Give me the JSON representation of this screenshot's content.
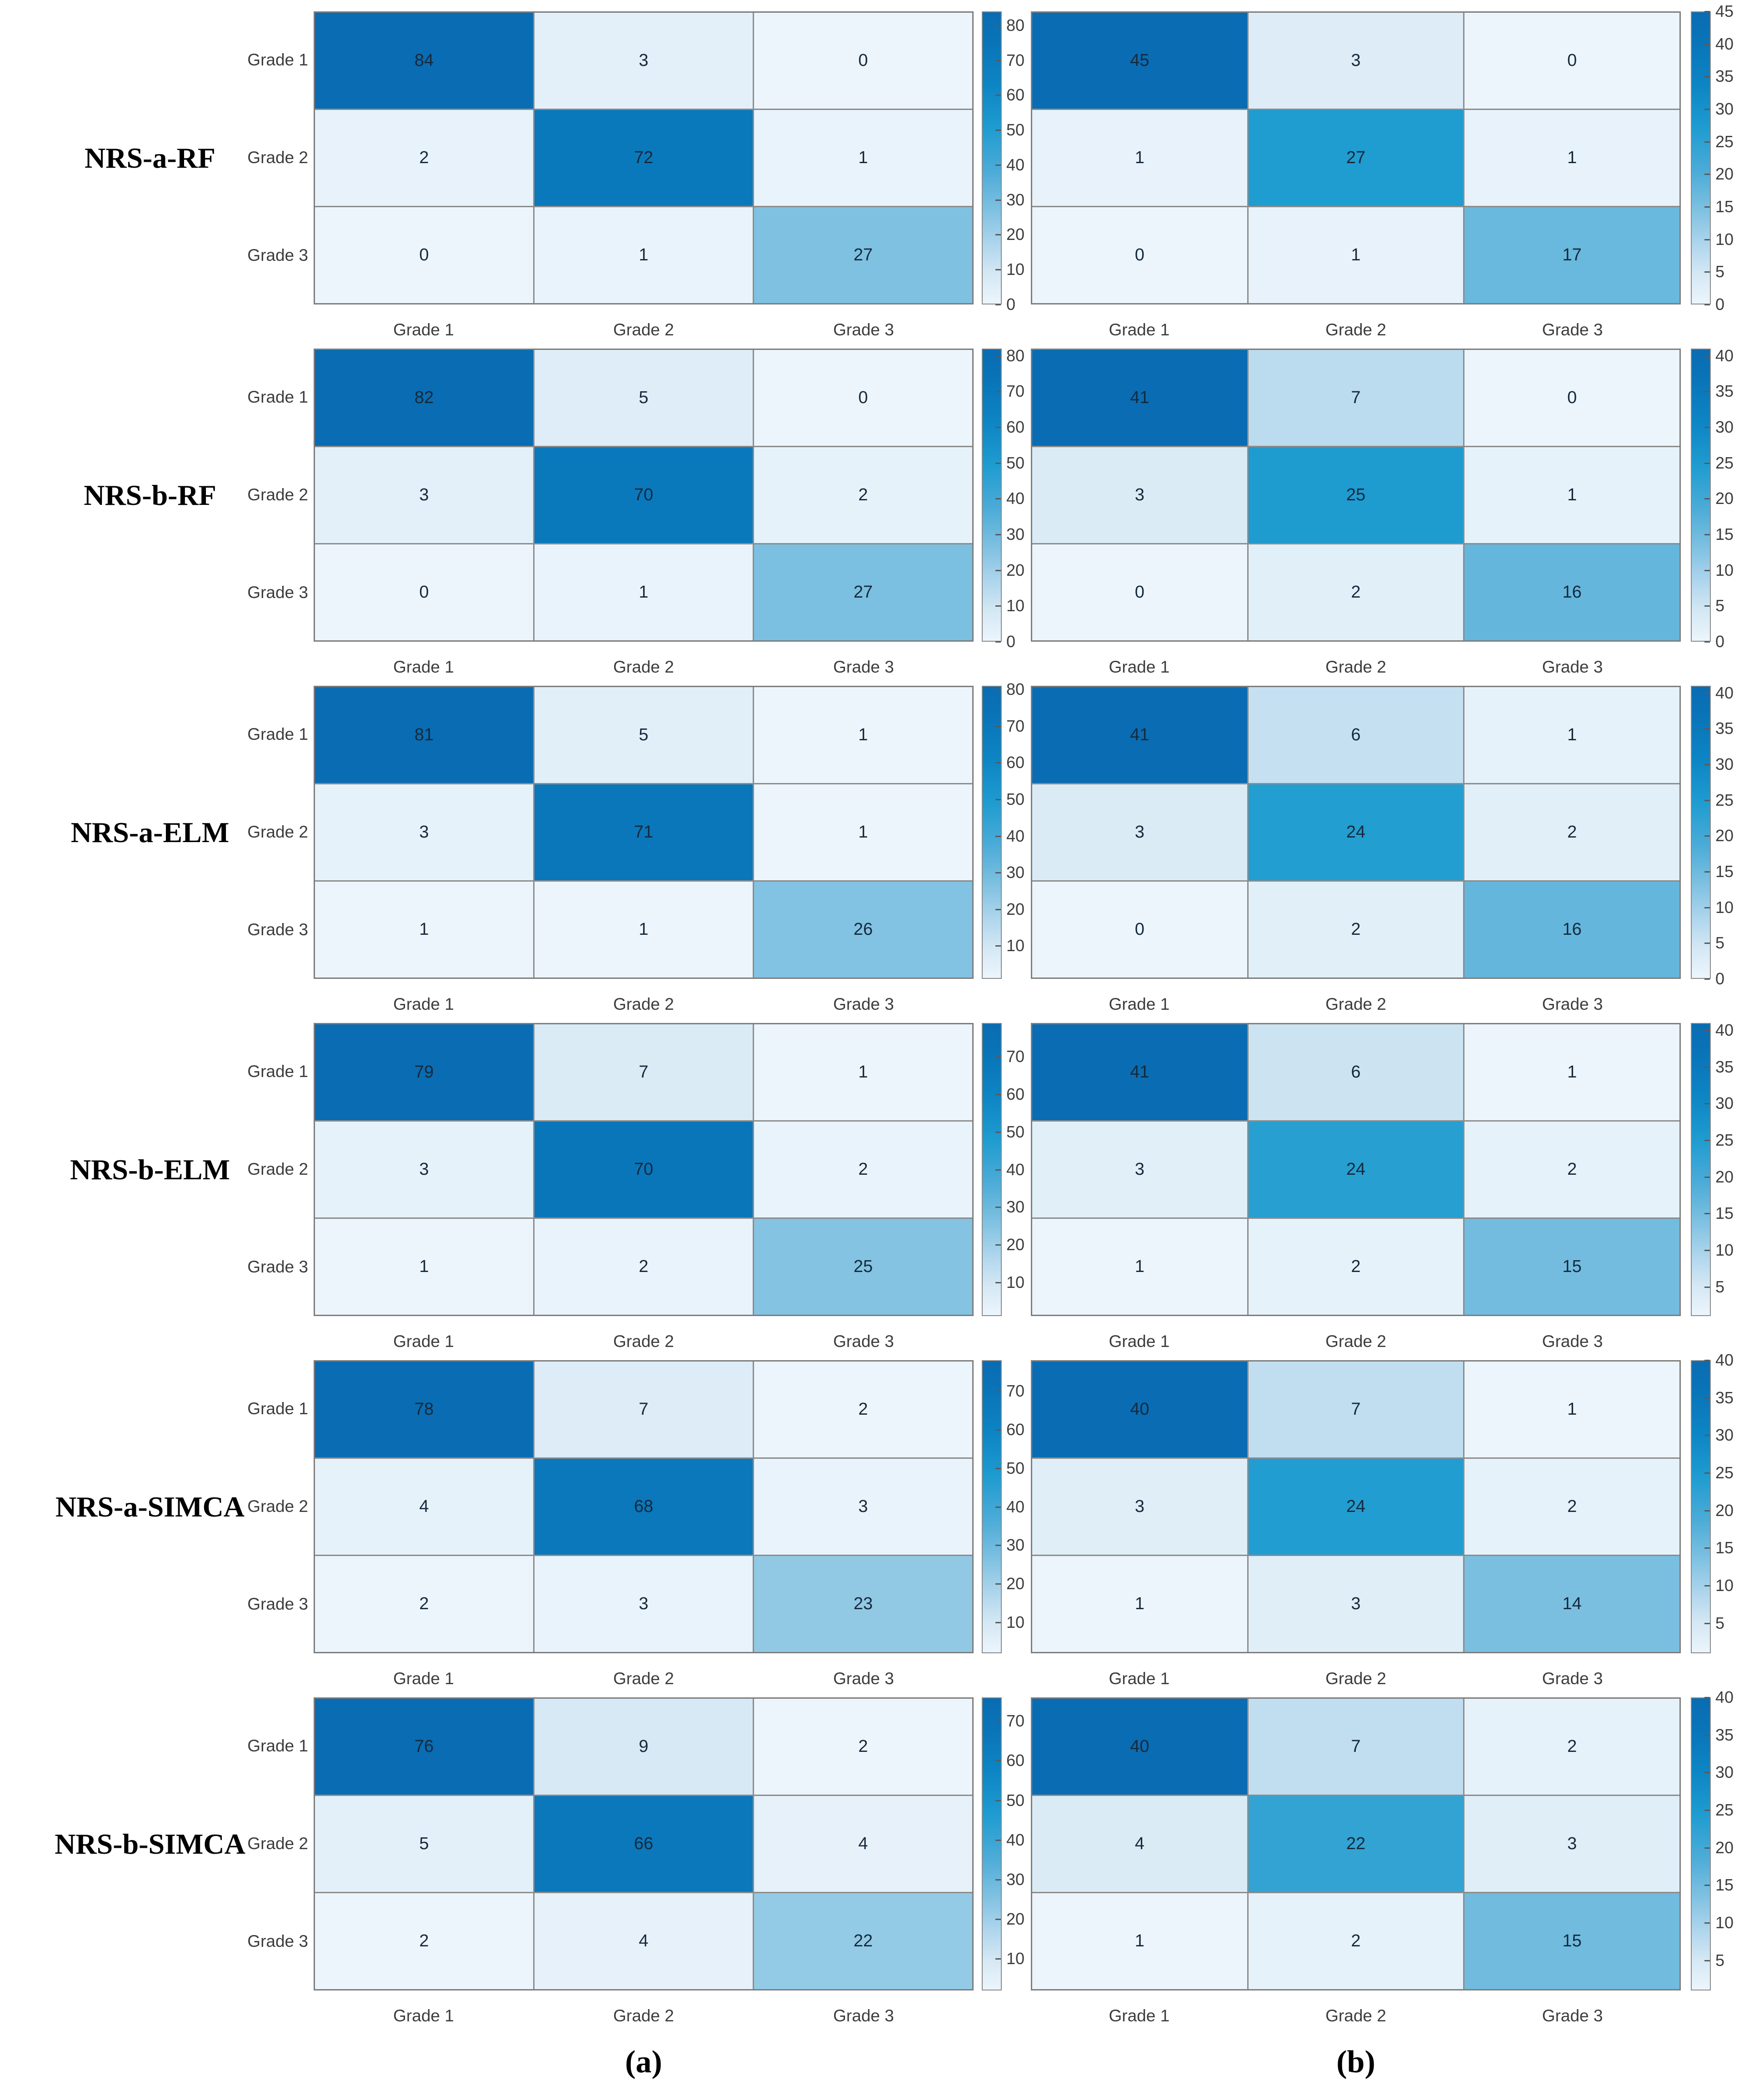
{
  "captions": {
    "a": "(a)",
    "b": "(b)"
  },
  "models": [
    "NRS-a-RF",
    "NRS-b-RF",
    "NRS-a-ELM",
    "NRS-b-ELM",
    "NRS-a-SIMCA",
    "NRS-b-SIMCA"
  ],
  "grades": [
    "Grade 1",
    "Grade 2",
    "Grade 3"
  ],
  "colors": {
    "grid_line": "#8c8c8c",
    "panel_border": "#7d7d7d",
    "tick_text": "#3d3d3d",
    "value_text": "#16293c",
    "colormap": [
      {
        "t": 0.0,
        "hex": "#ECF5FC"
      },
      {
        "t": 0.1,
        "hex": "#D5E8F4"
      },
      {
        "t": 0.2,
        "hex": "#B0D6ED"
      },
      {
        "t": 0.32,
        "hex": "#7FC1E1"
      },
      {
        "t": 0.45,
        "hex": "#4DACD8"
      },
      {
        "t": 0.6,
        "hex": "#1F9CD0"
      },
      {
        "t": 0.75,
        "hex": "#0D85C4"
      },
      {
        "t": 0.9,
        "hex": "#0974B8"
      },
      {
        "t": 1.0,
        "hex": "#0A6CB2"
      }
    ]
  },
  "chart_data": [
    {
      "type": "heatmap",
      "model": "NRS-a-RF",
      "panel": "a",
      "x_labels": [
        "Grade 1",
        "Grade 2",
        "Grade 3"
      ],
      "y_labels": [
        "Grade 1",
        "Grade 2",
        "Grade 3"
      ],
      "values": [
        [
          84,
          3,
          0
        ],
        [
          2,
          72,
          1
        ],
        [
          0,
          1,
          27
        ]
      ],
      "clim": [
        0,
        84
      ],
      "colorbar_ticks": [
        0,
        10,
        20,
        30,
        40,
        50,
        60,
        70,
        80
      ]
    },
    {
      "type": "heatmap",
      "model": "NRS-a-RF",
      "panel": "b",
      "x_labels": [
        "Grade 1",
        "Grade 2",
        "Grade 3"
      ],
      "y_labels": [
        "Grade 1",
        "Grade 2",
        "Grade 3"
      ],
      "values": [
        [
          45,
          3,
          0
        ],
        [
          1,
          27,
          1
        ],
        [
          0,
          1,
          17
        ]
      ],
      "clim": [
        0,
        45
      ],
      "colorbar_ticks": [
        0,
        5,
        10,
        15,
        20,
        25,
        30,
        35,
        40,
        45
      ]
    },
    {
      "type": "heatmap",
      "model": "NRS-b-RF",
      "panel": "a",
      "x_labels": [
        "Grade 1",
        "Grade 2",
        "Grade 3"
      ],
      "y_labels": [
        "Grade 1",
        "Grade 2",
        "Grade 3"
      ],
      "values": [
        [
          82,
          5,
          0
        ],
        [
          3,
          70,
          2
        ],
        [
          0,
          1,
          27
        ]
      ],
      "clim": [
        0,
        82
      ],
      "colorbar_ticks": [
        0,
        10,
        20,
        30,
        40,
        50,
        60,
        70,
        80
      ]
    },
    {
      "type": "heatmap",
      "model": "NRS-b-RF",
      "panel": "b",
      "x_labels": [
        "Grade 1",
        "Grade 2",
        "Grade 3"
      ],
      "y_labels": [
        "Grade 1",
        "Grade 2",
        "Grade 3"
      ],
      "values": [
        [
          41,
          7,
          0
        ],
        [
          3,
          25,
          1
        ],
        [
          0,
          2,
          16
        ]
      ],
      "clim": [
        0,
        41
      ],
      "colorbar_ticks": [
        0,
        5,
        10,
        15,
        20,
        25,
        30,
        35,
        40
      ]
    },
    {
      "type": "heatmap",
      "model": "NRS-a-ELM",
      "panel": "a",
      "x_labels": [
        "Grade 1",
        "Grade 2",
        "Grade 3"
      ],
      "y_labels": [
        "Grade 1",
        "Grade 2",
        "Grade 3"
      ],
      "values": [
        [
          81,
          5,
          1
        ],
        [
          3,
          71,
          1
        ],
        [
          1,
          1,
          26
        ]
      ],
      "clim": [
        1,
        81
      ],
      "colorbar_ticks": [
        10,
        20,
        30,
        40,
        50,
        60,
        70,
        80
      ]
    },
    {
      "type": "heatmap",
      "model": "NRS-a-ELM",
      "panel": "b",
      "x_labels": [
        "Grade 1",
        "Grade 2",
        "Grade 3"
      ],
      "y_labels": [
        "Grade 1",
        "Grade 2",
        "Grade 3"
      ],
      "values": [
        [
          41,
          6,
          1
        ],
        [
          3,
          24,
          2
        ],
        [
          0,
          2,
          16
        ]
      ],
      "clim": [
        0,
        41
      ],
      "colorbar_ticks": [
        0,
        5,
        10,
        15,
        20,
        25,
        30,
        35,
        40
      ]
    },
    {
      "type": "heatmap",
      "model": "NRS-b-ELM",
      "panel": "a",
      "x_labels": [
        "Grade 1",
        "Grade 2",
        "Grade 3"
      ],
      "y_labels": [
        "Grade 1",
        "Grade 2",
        "Grade 3"
      ],
      "values": [
        [
          79,
          7,
          1
        ],
        [
          3,
          70,
          2
        ],
        [
          1,
          2,
          25
        ]
      ],
      "clim": [
        1,
        79
      ],
      "colorbar_ticks": [
        10,
        20,
        30,
        40,
        50,
        60,
        70
      ]
    },
    {
      "type": "heatmap",
      "model": "NRS-b-ELM",
      "panel": "b",
      "x_labels": [
        "Grade 1",
        "Grade 2",
        "Grade 3"
      ],
      "y_labels": [
        "Grade 1",
        "Grade 2",
        "Grade 3"
      ],
      "values": [
        [
          41,
          6,
          1
        ],
        [
          3,
          24,
          2
        ],
        [
          1,
          2,
          15
        ]
      ],
      "clim": [
        1,
        41
      ],
      "colorbar_ticks": [
        5,
        10,
        15,
        20,
        25,
        30,
        35,
        40
      ]
    },
    {
      "type": "heatmap",
      "model": "NRS-a-SIMCA",
      "panel": "a",
      "x_labels": [
        "Grade 1",
        "Grade 2",
        "Grade 3"
      ],
      "y_labels": [
        "Grade 1",
        "Grade 2",
        "Grade 3"
      ],
      "values": [
        [
          78,
          7,
          2
        ],
        [
          4,
          68,
          3
        ],
        [
          2,
          3,
          23
        ]
      ],
      "clim": [
        2,
        78
      ],
      "colorbar_ticks": [
        10,
        20,
        30,
        40,
        50,
        60,
        70
      ]
    },
    {
      "type": "heatmap",
      "model": "NRS-a-SIMCA",
      "panel": "b",
      "x_labels": [
        "Grade 1",
        "Grade 2",
        "Grade 3"
      ],
      "y_labels": [
        "Grade 1",
        "Grade 2",
        "Grade 3"
      ],
      "values": [
        [
          40,
          7,
          1
        ],
        [
          3,
          24,
          2
        ],
        [
          1,
          3,
          14
        ]
      ],
      "clim": [
        1,
        40
      ],
      "colorbar_ticks": [
        5,
        10,
        15,
        20,
        25,
        30,
        35,
        40
      ]
    },
    {
      "type": "heatmap",
      "model": "NRS-b-SIMCA",
      "panel": "a",
      "x_labels": [
        "Grade 1",
        "Grade 2",
        "Grade 3"
      ],
      "y_labels": [
        "Grade 1",
        "Grade 2",
        "Grade 3"
      ],
      "values": [
        [
          76,
          9,
          2
        ],
        [
          5,
          66,
          4
        ],
        [
          2,
          4,
          22
        ]
      ],
      "clim": [
        2,
        76
      ],
      "colorbar_ticks": [
        10,
        20,
        30,
        40,
        50,
        60,
        70
      ]
    },
    {
      "type": "heatmap",
      "model": "NRS-b-SIMCA",
      "panel": "b",
      "x_labels": [
        "Grade 1",
        "Grade 2",
        "Grade 3"
      ],
      "y_labels": [
        "Grade 1",
        "Grade 2",
        "Grade 3"
      ],
      "values": [
        [
          40,
          7,
          2
        ],
        [
          4,
          22,
          3
        ],
        [
          1,
          2,
          15
        ]
      ],
      "clim": [
        1,
        40
      ],
      "colorbar_ticks": [
        5,
        10,
        15,
        20,
        25,
        30,
        35,
        40
      ]
    }
  ]
}
